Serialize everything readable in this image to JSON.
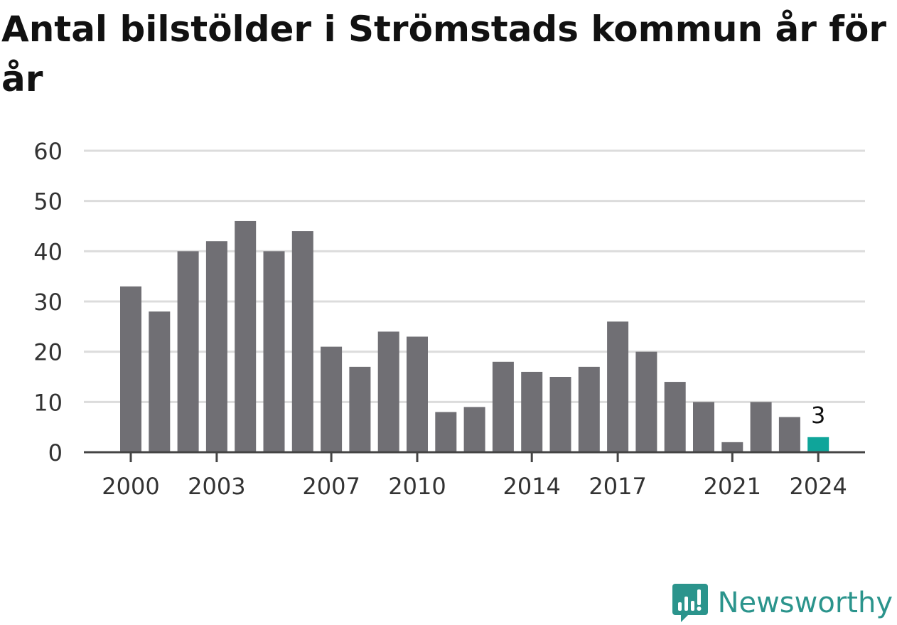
{
  "chart_title": "Antal bilstölder i Strömstads kommun år för år",
  "brand": {
    "name": "Newsworthy",
    "icon": "newsworthy-logo-icon",
    "color": "#2b948c"
  },
  "colors": {
    "bar": "#706f74",
    "highlight": "#0fa59a",
    "grid": "#dcdcdc",
    "axis": "#444444",
    "tick_text": "#333333"
  },
  "chart_data": {
    "type": "bar",
    "title": "Antal bilstölder i Strömstads kommun år för år",
    "xlabel": "",
    "ylabel": "",
    "categories": [
      2000,
      2001,
      2002,
      2003,
      2004,
      2005,
      2006,
      2007,
      2008,
      2009,
      2010,
      2011,
      2012,
      2013,
      2014,
      2015,
      2016,
      2017,
      2018,
      2019,
      2020,
      2021,
      2022,
      2023,
      2024
    ],
    "values": [
      33,
      28,
      40,
      42,
      46,
      40,
      44,
      21,
      17,
      24,
      23,
      8,
      9,
      18,
      16,
      15,
      17,
      26,
      20,
      14,
      10,
      2,
      10,
      7,
      3
    ],
    "ylim": [
      0,
      60
    ],
    "yticks": [
      0,
      10,
      20,
      30,
      40,
      50,
      60
    ],
    "xtick_labels": [
      2000,
      2003,
      2007,
      2010,
      2014,
      2017,
      2021,
      2024
    ],
    "highlight_index": 24,
    "annotations": [
      {
        "category": 2024,
        "text": "3"
      }
    ],
    "grid": true,
    "legend": "none"
  }
}
